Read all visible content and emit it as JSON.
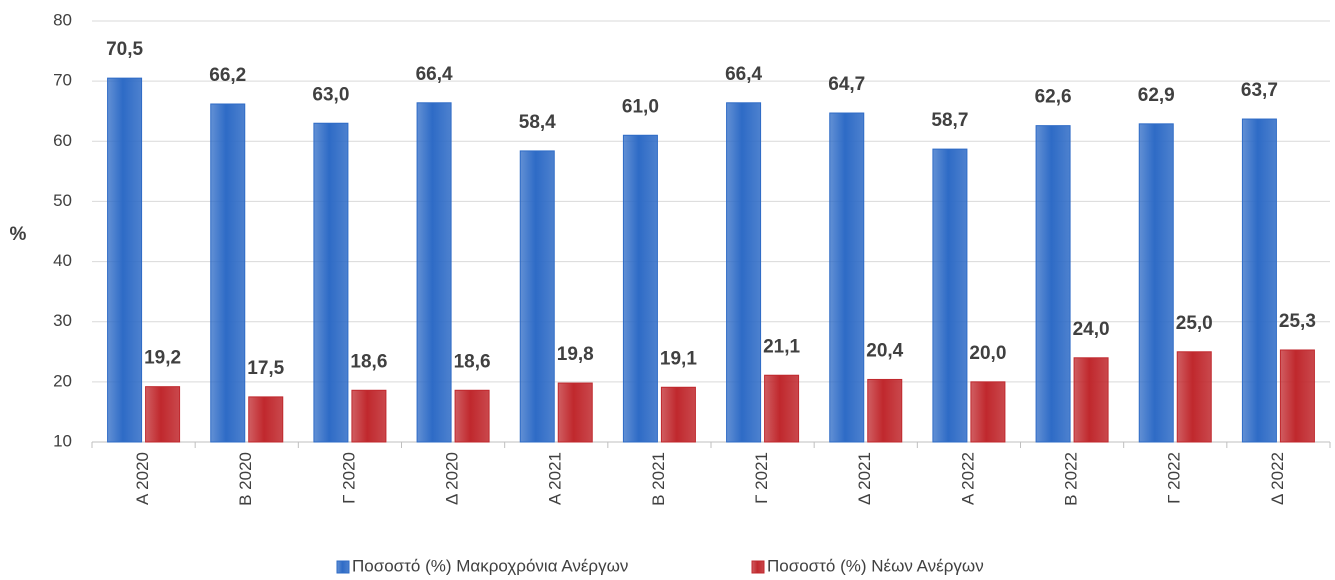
{
  "chart_data": {
    "type": "bar",
    "y_label": "%",
    "categories": [
      "Α 2020",
      "Β 2020",
      "Γ 2020",
      "Δ 2020",
      "Α 2021",
      "Β 2021",
      "Γ 2021",
      "Δ 2021",
      "Α 2022",
      "Β 2022",
      "Γ 2022",
      "Δ 2022"
    ],
    "series": [
      {
        "name": "Ποσοστό (%) Μακροχρόνια Ανέργων",
        "color": "#2e6bc6",
        "values": [
          70.5,
          66.2,
          63.0,
          66.4,
          58.4,
          61.0,
          66.4,
          64.7,
          58.7,
          62.6,
          62.9,
          63.7
        ],
        "value_labels": [
          "70,5",
          "66,2",
          "63,0",
          "66,4",
          "58,4",
          "61,0",
          "66,4",
          "64,7",
          "58,7",
          "62,6",
          "62,9",
          "63,7"
        ]
      },
      {
        "name": "Ποσοστό (%) Νέων Ανέργων",
        "color": "#c0282d",
        "values": [
          19.2,
          17.5,
          18.6,
          18.6,
          19.8,
          19.1,
          21.1,
          20.4,
          20.0,
          24.0,
          25.0,
          25.3
        ],
        "value_labels": [
          "19,2",
          "17,5",
          "18,6",
          "18,6",
          "19,8",
          "19,1",
          "21,1",
          "20,4",
          "20,0",
          "24,0",
          "25,0",
          "25,3"
        ]
      }
    ],
    "ylim": [
      10,
      80
    ],
    "yticks": [
      10,
      20,
      30,
      40,
      50,
      60,
      70,
      80
    ],
    "grid": true,
    "legend": "bottom"
  }
}
